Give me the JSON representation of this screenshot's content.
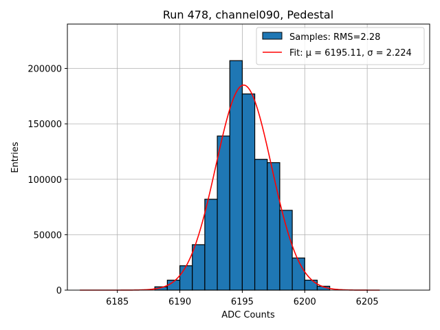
{
  "chart_data": {
    "type": "bar",
    "title": "Run 478, channel090, Pedestal",
    "xlabel": "ADC Counts",
    "ylabel": "Entries",
    "xlim": [
      6181,
      6210
    ],
    "ylim": [
      0,
      240000
    ],
    "xticks": [
      6185,
      6190,
      6195,
      6200,
      6205
    ],
    "yticks": [
      0,
      50000,
      100000,
      150000,
      200000
    ],
    "grid": true,
    "legend_position": "top-right",
    "bin_width": 1,
    "bins": [
      6188,
      6189,
      6190,
      6191,
      6192,
      6193,
      6194,
      6195,
      6196,
      6197,
      6198,
      6199,
      6200,
      6201
    ],
    "values": [
      3000,
      9000,
      22000,
      41000,
      82000,
      139000,
      207000,
      177000,
      118000,
      115000,
      72000,
      29000,
      9000,
      3500
    ],
    "fit": {
      "mu": 6195.11,
      "sigma": 2.224,
      "amplitude": 185000,
      "x_range": [
        6182,
        6206
      ]
    },
    "legend": [
      {
        "label": "Samples: RMS=2.28",
        "kind": "patch",
        "color": "#1f77b4"
      },
      {
        "label": "Fit: μ = 6195.11, σ = 2.224",
        "kind": "line",
        "color": "#ff0000"
      }
    ],
    "colors": {
      "bar_fill": "#1f77b4",
      "bar_edge": "#000000",
      "fit_line": "#ff0000",
      "grid": "#b0b0b0"
    }
  }
}
